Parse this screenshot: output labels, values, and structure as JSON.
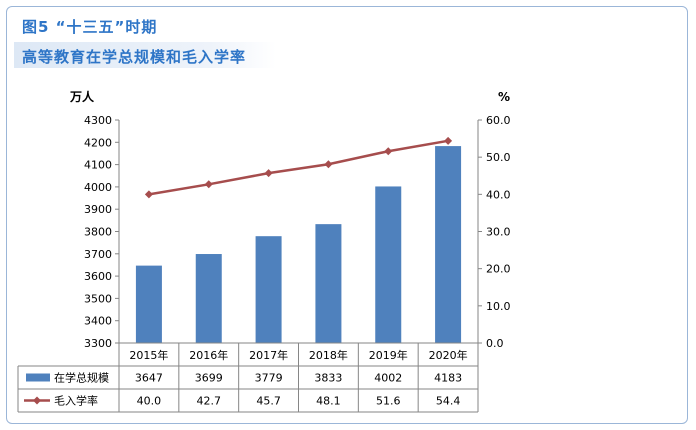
{
  "header": {
    "title_line1": "图5 “十三五”时期",
    "title_line2": "高等教育在学总规模和毛入学率"
  },
  "chart_data": {
    "type": "bar",
    "categories": [
      "2015年",
      "2016年",
      "2017年",
      "2018年",
      "2019年",
      "2020年"
    ],
    "series": [
      {
        "name": "在学总规模",
        "type": "bar",
        "axis": "left",
        "color": "#4f81bd",
        "values": [
          3647,
          3699,
          3779,
          3833,
          4002,
          4183
        ]
      },
      {
        "name": "毛入学率",
        "type": "line",
        "axis": "right",
        "color": "#a64d4d",
        "values": [
          40.0,
          42.7,
          45.7,
          48.1,
          51.6,
          54.4
        ]
      }
    ],
    "left_axis": {
      "unit": "万人",
      "min": 3300,
      "max": 4300,
      "step": 100,
      "ticks": [
        "3300",
        "3400",
        "3500",
        "3600",
        "3700",
        "3800",
        "3900",
        "4000",
        "4100",
        "4200",
        "4300"
      ]
    },
    "right_axis": {
      "unit": "%",
      "min": 0,
      "max": 60,
      "step": 10,
      "ticks": [
        "0.0",
        "10.0",
        "20.0",
        "30.0",
        "40.0",
        "50.0",
        "60.0"
      ]
    },
    "table": {
      "rows": [
        {
          "label": "在学总规模",
          "cells": [
            "3647",
            "3699",
            "3779",
            "3833",
            "4002",
            "4183"
          ]
        },
        {
          "label": "毛入学率",
          "cells": [
            "40.0",
            "42.7",
            "45.7",
            "48.1",
            "51.6",
            "54.4"
          ]
        }
      ]
    }
  }
}
